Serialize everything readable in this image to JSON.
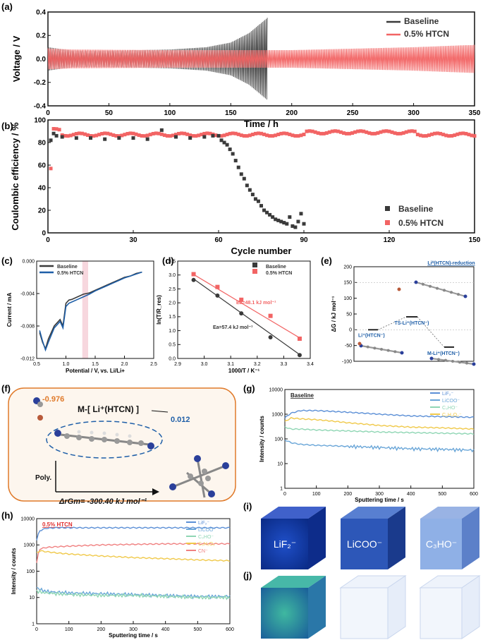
{
  "panels": {
    "a": {
      "label": "(a)"
    },
    "b": {
      "label": "(b)"
    },
    "c": {
      "label": "(c)"
    },
    "d": {
      "label": "(d)"
    },
    "e": {
      "label": "(e)"
    },
    "f": {
      "label": "(f)"
    },
    "g": {
      "label": "(g)"
    },
    "h": {
      "label": "(h)"
    },
    "i": {
      "label": "(i)"
    },
    "j": {
      "label": "(j)"
    }
  },
  "colors": {
    "baseline": "#3a3a3a",
    "htcn": "#f26464",
    "blue": "#1f5fa8"
  },
  "chart_data": [
    {
      "id": "a",
      "type": "line",
      "xlabel": "Time / h",
      "ylabel": "Voltage / V",
      "xlim": [
        0,
        350
      ],
      "ylim": [
        -0.4,
        0.4
      ],
      "xticks": [
        "0",
        "50",
        "100",
        "150",
        "200",
        "250",
        "300",
        "350"
      ],
      "yticks": [
        "0.4",
        "0.2",
        "0.0",
        "-0.2",
        "-0.4"
      ],
      "legend": [
        "Baseline",
        "0.5% HTCN"
      ],
      "series": [
        {
          "name": "Baseline",
          "envelope_t": [
            0,
            20,
            50,
            100,
            130,
            150,
            165,
            180
          ],
          "envelope_amp": [
            0.1,
            0.07,
            0.07,
            0.08,
            0.1,
            0.14,
            0.22,
            0.35
          ]
        },
        {
          "name": "0.5% HTCN",
          "envelope_t": [
            0,
            20,
            100,
            200,
            300,
            350
          ],
          "envelope_amp": [
            0.09,
            0.08,
            0.075,
            0.075,
            0.1,
            0.12
          ]
        }
      ]
    },
    {
      "id": "b",
      "type": "scatter",
      "xlabel": "Cycle number",
      "ylabel": "Coulombic efficiency / %",
      "xlim": [
        0,
        150
      ],
      "ylim": [
        0,
        100
      ],
      "xticks": [
        "0",
        "30",
        "60",
        "90",
        "120",
        "150"
      ],
      "yticks": [
        "100",
        "80",
        "60",
        "40",
        "20",
        "0"
      ],
      "legend": [
        "Baseline",
        "0.5% HTCN"
      ],
      "series": [
        {
          "name": "Baseline",
          "x": [
            1,
            2,
            3,
            5,
            10,
            15,
            20,
            25,
            30,
            35,
            40,
            45,
            50,
            55,
            58,
            60,
            61,
            62,
            63,
            64,
            65,
            66,
            67,
            68,
            69,
            70,
            71,
            72,
            73,
            74,
            75,
            76,
            77,
            78,
            79,
            80,
            81,
            82,
            83,
            84,
            85,
            86,
            87,
            88,
            89,
            90
          ],
          "y": [
            82,
            88,
            86,
            85,
            84,
            84,
            83,
            84,
            84,
            83,
            91,
            85,
            84,
            85,
            86,
            86,
            82,
            80,
            78,
            74,
            70,
            64,
            58,
            52,
            48,
            42,
            38,
            34,
            30,
            28,
            24,
            20,
            18,
            16,
            14,
            12,
            11,
            10,
            9,
            8,
            14,
            6,
            5,
            10,
            17,
            8
          ]
        },
        {
          "name": "0.5% HTCN",
          "x_start": 1,
          "x_end": 150,
          "first_point": 57,
          "level": 87
        }
      ]
    },
    {
      "id": "c",
      "type": "line",
      "xlabel": "Potential / V, vs. Li/Li+",
      "ylabel": "Current / mA",
      "xlim": [
        0.5,
        2.5
      ],
      "ylim": [
        -0.0135,
        0.0015
      ],
      "xticks": [
        "0.5",
        "1.0",
        "1.5",
        "2.0",
        "2.5"
      ],
      "yticks": [
        "0.000",
        "-0.004",
        "-0.008",
        "-0.012"
      ],
      "legend": [
        "Baseline",
        "0.5% HTCN"
      ],
      "series": [
        {
          "name": "Baseline",
          "x": [
            0.55,
            0.6,
            0.65,
            0.7,
            0.8,
            0.9,
            0.95,
            1.0,
            1.05,
            1.1,
            1.2,
            1.3,
            1.4,
            1.5,
            1.6,
            1.7,
            1.8,
            1.9,
            2.0,
            2.1,
            2.2,
            2.3
          ],
          "y": [
            -0.0095,
            -0.011,
            -0.012,
            -0.0105,
            -0.0085,
            -0.0075,
            -0.0085,
            -0.005,
            -0.0045,
            -0.0044,
            -0.004,
            -0.0036,
            -0.0034,
            -0.003,
            -0.0026,
            -0.0022,
            -0.0018,
            -0.0014,
            -0.001,
            -0.0008,
            -0.0004,
            -0.0002
          ]
        },
        {
          "name": "0.5% HTCN",
          "x": [
            0.55,
            0.6,
            0.65,
            0.7,
            0.8,
            0.9,
            0.95,
            1.0,
            1.05,
            1.1,
            1.2,
            1.3,
            1.4,
            1.5,
            1.6,
            1.7,
            1.8,
            1.9,
            2.0,
            2.1,
            2.2,
            2.3
          ],
          "y": [
            -0.0092,
            -0.0108,
            -0.0122,
            -0.011,
            -0.0088,
            -0.0078,
            -0.0088,
            -0.0055,
            -0.005,
            -0.0048,
            -0.0044,
            -0.004,
            -0.0036,
            -0.0031,
            -0.0027,
            -0.0023,
            -0.0019,
            -0.0015,
            -0.0011,
            -0.0008,
            -0.0005,
            -0.0002
          ]
        }
      ],
      "highlight_x": [
        1.28,
        1.38
      ]
    },
    {
      "id": "d",
      "type": "scatter",
      "xlabel": "1000/T / K⁻¹",
      "ylabel": "ln(T/R_res)",
      "xlim": [
        2.9,
        3.4
      ],
      "ylim": [
        0.0,
        3.5
      ],
      "xticks": [
        "2.9",
        "3.0",
        "3.1",
        "3.2",
        "3.3",
        "3.4"
      ],
      "yticks": [
        "3.5",
        "3.0",
        "2.5",
        "2.0",
        "1.5",
        "1.0",
        "0.5",
        "0.0"
      ],
      "legend": [
        "Baseline",
        "0.5% HTCN"
      ],
      "series": [
        {
          "name": "Baseline",
          "x": [
            2.96,
            3.05,
            3.14,
            3.25,
            3.36
          ],
          "y": [
            2.82,
            2.26,
            1.62,
            0.76,
            0.12
          ],
          "fit": [
            [
              2.96,
              2.86
            ],
            [
              3.36,
              0.14
            ]
          ],
          "label": "Ea=57.4 kJ mol⁻¹"
        },
        {
          "name": "0.5% HTCN",
          "x": [
            2.96,
            3.05,
            3.14,
            3.25,
            3.36
          ],
          "y": [
            3.03,
            2.57,
            2.11,
            1.53,
            0.71
          ],
          "fit": [
            [
              2.96,
              3.02
            ],
            [
              3.36,
              0.74
            ]
          ],
          "label": "Ea=48.1 kJ mol⁻¹"
        }
      ]
    },
    {
      "id": "e",
      "type": "diagram",
      "ylabel": "ΔG / kJ mol⁻¹",
      "ylim": [
        -100,
        200
      ],
      "yticks": [
        "200",
        "150",
        "100",
        "50",
        "0",
        "-50",
        "-100"
      ],
      "title": "Li⁰(HTCN)-reduction",
      "levels": [
        {
          "name": "Li⁺(HTCN⁻)",
          "g": 0
        },
        {
          "name": "TS-Li⁺(HTCN⁻)",
          "g": 41
        },
        {
          "name": "M-Li⁺(HTCN⁻)",
          "g": -55
        }
      ]
    },
    {
      "id": "g",
      "type": "line",
      "title": "Baseline",
      "xlabel": "Sputtering time / s",
      "ylabel": "Intensity / counts",
      "xlim": [
        0,
        600
      ],
      "ylog": true,
      "ylim": [
        1,
        10000
      ],
      "xticks": [
        "0",
        "100",
        "200",
        "300",
        "400",
        "500",
        "600"
      ],
      "yticks": [
        "10000",
        "1000",
        "100",
        "10",
        "1"
      ],
      "legend": [
        "LiF₂⁻",
        "LiCOO⁻",
        "C₃HO⁻",
        "C₃H₂O₂⁻"
      ],
      "series": [
        {
          "name": "LiF₂⁻",
          "x": [
            0,
            20,
            50,
            100,
            200,
            300,
            400,
            500,
            600
          ],
          "y": [
            700,
            1100,
            1400,
            1400,
            1200,
            1000,
            850,
            800,
            750
          ]
        },
        {
          "name": "C₃H₂O₂⁻",
          "x": [
            0,
            20,
            50,
            100,
            200,
            300,
            400,
            500,
            600
          ],
          "y": [
            500,
            700,
            650,
            600,
            450,
            350,
            300,
            280,
            250
          ]
        },
        {
          "name": "C₃HO⁻",
          "x": [
            0,
            20,
            50,
            100,
            200,
            300,
            400,
            500,
            600
          ],
          "y": [
            300,
            250,
            250,
            230,
            210,
            190,
            180,
            170,
            160
          ]
        },
        {
          "name": "LiCOO⁻",
          "x": [
            0,
            20,
            50,
            100,
            200,
            300,
            400,
            500,
            600
          ],
          "y": [
            90,
            70,
            60,
            55,
            50,
            45,
            40,
            38,
            35
          ]
        }
      ]
    },
    {
      "id": "h",
      "type": "line",
      "title": "0.5% HTCN",
      "xlabel": "Sputtering time / s",
      "ylabel": "Intensity / counts",
      "xlim": [
        0,
        600
      ],
      "ylog": true,
      "ylim": [
        1,
        10000
      ],
      "xticks": [
        "0",
        "100",
        "200",
        "300",
        "400",
        "500",
        "600"
      ],
      "yticks": [
        "10000",
        "1000",
        "100",
        "10",
        "1"
      ],
      "legend": [
        "LiF₂⁻",
        "LiCOO⁻",
        "C₃HO⁻",
        "C₃H₂O₂⁻",
        "CN⁻"
      ],
      "series": [
        {
          "name": "LiF₂⁻",
          "x": [
            0,
            10,
            30,
            60,
            100,
            200,
            300,
            400,
            500,
            600
          ],
          "y": [
            1500,
            3500,
            4300,
            4500,
            4500,
            4500,
            4500,
            4500,
            4500,
            4500
          ]
        },
        {
          "name": "CN⁻",
          "x": [
            0,
            10,
            30,
            60,
            100,
            200,
            300,
            400,
            500,
            600
          ],
          "y": [
            200,
            700,
            800,
            850,
            900,
            1000,
            1050,
            1100,
            1100,
            1100
          ]
        },
        {
          "name": "C₃H₂O₂⁻",
          "x": [
            0,
            10,
            30,
            60,
            100,
            200,
            300,
            400,
            500,
            600
          ],
          "y": [
            500,
            600,
            550,
            500,
            450,
            380,
            330,
            300,
            270,
            250
          ]
        },
        {
          "name": "LiCOO⁻",
          "x": [
            0,
            10,
            30,
            60,
            100,
            200,
            300,
            400,
            500,
            600
          ],
          "y": [
            25,
            20,
            17,
            16,
            15,
            14,
            13,
            12,
            11,
            11
          ]
        },
        {
          "name": "C₃HO⁻",
          "x": [
            0,
            10,
            30,
            60,
            100,
            200,
            300,
            400,
            500,
            600
          ],
          "y": [
            18,
            16,
            15,
            14,
            13,
            12,
            12,
            11,
            10,
            10
          ]
        }
      ]
    }
  ],
  "labels": {
    "f_title": "M-[ Li⁺(HTCN) ]",
    "f_charge_li": "-0.976",
    "f_charge_htcn": "0.012",
    "f_poly": "Poly.",
    "f_energy": "ΔrGm= -300.40 kJ mol⁻¹",
    "i_labels": [
      "LiF₂⁻",
      "LiCOO⁻",
      "C₃HO⁻"
    ]
  }
}
